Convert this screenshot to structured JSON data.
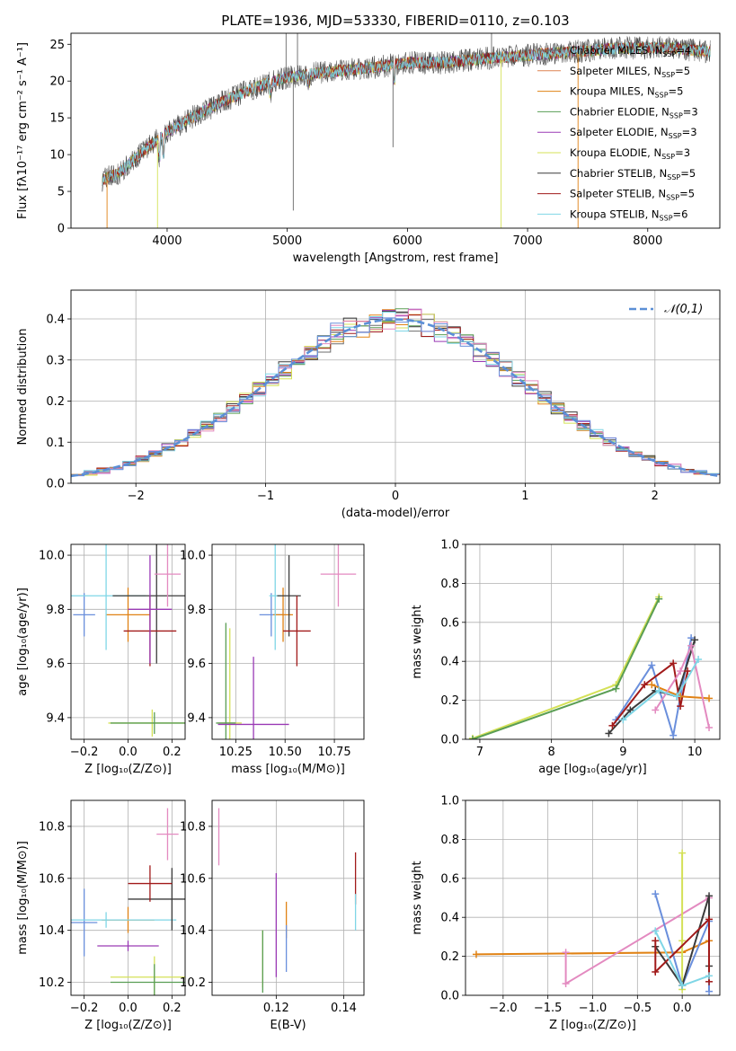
{
  "chart_data": [
    {
      "id": "spectrum",
      "type": "line",
      "title": "PLATE=1936, MJD=53330, FIBERID=0110, z=0.103",
      "xlabel": "wavelength [Angstrom, rest frame]",
      "ylabel": "Flux [fλ10⁻¹⁷ erg cm⁻² s⁻¹ A⁻¹]",
      "xlim": [
        3200,
        8600
      ],
      "ylim": [
        0,
        26.5
      ],
      "xticks": [
        4000,
        5000,
        6000,
        7000,
        8000
      ],
      "yticks": [
        0,
        5,
        10,
        15,
        20,
        25
      ],
      "legend_position": "upper-right",
      "series": [
        {
          "name": "Chabrier MILES, N_SSP=4",
          "color": "#696969"
        },
        {
          "name": "Salpeter MILES, N_SSP=5",
          "color": "#dd8452"
        },
        {
          "name": "Kroupa MILES, N_SSP=5",
          "color": "#e08214"
        },
        {
          "name": "Chabrier ELODIE, N_SSP=3",
          "color": "#5a9e54"
        },
        {
          "name": "Salpeter ELODIE, N_SSP=3",
          "color": "#9a3ab5"
        },
        {
          "name": "Kroupa ELODIE, N_SSP=3",
          "color": "#d4e157"
        },
        {
          "name": "Chabrier STELIB, N_SSP=5",
          "color": "#3b3b3b"
        },
        {
          "name": "Salpeter STELIB, N_SSP=5",
          "color": "#a11a1a"
        },
        {
          "name": "Kroupa STELIB, N_SSP=6",
          "color": "#7fd6e6"
        }
      ],
      "continuum": {
        "x": [
          3450,
          3600,
          3800,
          4000,
          4200,
          4500,
          4800,
          5000,
          5200,
          5500,
          5800,
          6000,
          6300,
          6600,
          7000,
          7400,
          7800,
          8200,
          8500
        ],
        "y": [
          6.5,
          7.5,
          10.5,
          13.0,
          15.0,
          17.5,
          19.5,
          20.5,
          21.0,
          21.5,
          22.0,
          22.5,
          22.5,
          23.0,
          23.5,
          24.0,
          24.5,
          24.5,
          24.0
        ]
      }
    },
    {
      "id": "residuals",
      "type": "histogram",
      "xlabel": "(data-model)/error",
      "ylabel": "Normed distribution",
      "xlim": [
        -2.5,
        2.5
      ],
      "ylim": [
        0,
        0.47
      ],
      "xticks": [
        -2,
        -1,
        0,
        1,
        2
      ],
      "yticks": [
        0.0,
        0.1,
        0.2,
        0.3,
        0.4
      ],
      "grid": true,
      "legend_position": "upper-right",
      "reference": {
        "name": "𝒩(0,1)",
        "color": "#5b8fd6",
        "mean": 0,
        "sigma": 1
      },
      "bin_width": 0.1,
      "series_colors": [
        "#6d6d6d",
        "#e08214",
        "#5a9e54",
        "#9a3ab5",
        "#d4e157",
        "#3b3b3b",
        "#a11a1a",
        "#7fd6e6",
        "#e38ac0",
        "#6a8fdc"
      ]
    },
    {
      "id": "age_vs_Z",
      "type": "errorbar",
      "xlabel": "Z [log₁₀(Z/Z⊙)]",
      "ylabel": "age  [log₁₀(age/yr)]",
      "xlim": [
        -0.26,
        0.26
      ],
      "ylim": [
        9.32,
        10.04
      ],
      "xticks": [
        -0.2,
        0.0,
        0.2
      ],
      "yticks": [
        9.4,
        9.6,
        9.8,
        10.0
      ],
      "points": [
        {
          "x": -0.2,
          "xerr": 0.05,
          "y": 9.78,
          "yerr": 0.08,
          "color": "#6a8fdc"
        },
        {
          "x": 0.0,
          "xerr": 0.1,
          "y": 9.78,
          "yerr": 0.1,
          "color": "#e08214"
        },
        {
          "x": -0.1,
          "xerr": 0.18,
          "y": 9.85,
          "yerr": 0.2,
          "color": "#7fd6e6"
        },
        {
          "x": 0.13,
          "xerr": 0.2,
          "y": 9.85,
          "yerr": 0.25,
          "color": "#3b3b3b"
        },
        {
          "x": 0.1,
          "xerr": 0.12,
          "y": 9.72,
          "yerr": 0.13,
          "color": "#a11a1a"
        },
        {
          "x": 0.18,
          "xerr": 0.06,
          "y": 9.93,
          "yerr": 0.12,
          "color": "#e38ac0"
        },
        {
          "x": 0.11,
          "xerr": 0.2,
          "y": 9.38,
          "yerr": 0.05,
          "color": "#d4e157"
        },
        {
          "x": 0.12,
          "xerr": 0.2,
          "y": 9.38,
          "yerr": 0.04,
          "color": "#5a9e54"
        },
        {
          "x": 0.1,
          "xerr": 0.1,
          "y": 9.8,
          "yerr": 0.2,
          "color": "#9a3ab5"
        }
      ]
    },
    {
      "id": "age_vs_mass",
      "type": "errorbar",
      "xlabel": "mass [log₁₀(M/M⊙)]",
      "ylabel": "",
      "xlim": [
        10.13,
        10.9
      ],
      "ylim": [
        9.32,
        10.04
      ],
      "xticks": [
        10.25,
        10.5,
        10.75
      ],
      "yticks": [
        9.4,
        9.6,
        9.8,
        10.0
      ],
      "points": [
        {
          "x": 10.43,
          "xerr": 0.06,
          "y": 9.78,
          "yerr": 0.08,
          "color": "#6a8fdc"
        },
        {
          "x": 10.49,
          "xerr": 0.05,
          "y": 9.78,
          "yerr": 0.1,
          "color": "#e08214"
        },
        {
          "x": 10.45,
          "xerr": 0.03,
          "y": 9.85,
          "yerr": 0.2,
          "color": "#7fd6e6"
        },
        {
          "x": 10.52,
          "xerr": 0.06,
          "y": 9.85,
          "yerr": 0.15,
          "color": "#3b3b3b"
        },
        {
          "x": 10.56,
          "xerr": 0.07,
          "y": 9.72,
          "yerr": 0.13,
          "color": "#a11a1a"
        },
        {
          "x": 10.77,
          "xerr": 0.09,
          "y": 9.93,
          "yerr": 0.12,
          "color": "#e38ac0"
        },
        {
          "x": 10.22,
          "xerr": 0.06,
          "y": 9.38,
          "yerr": 0.35,
          "color": "#d4e157"
        },
        {
          "x": 10.2,
          "xerr": 0.05,
          "y": 9.38,
          "yerr": 0.37,
          "color": "#5a9e54"
        },
        {
          "x": 10.34,
          "xerr": 0.18,
          "y": 9.375,
          "yerr": 0.25,
          "color": "#9a3ab5"
        }
      ]
    },
    {
      "id": "weight_vs_age",
      "type": "line",
      "xlabel": "age  [log₁₀(age/yr)]",
      "ylabel": "mass weight",
      "xlim": [
        6.8,
        10.35
      ],
      "ylim": [
        0,
        1.0
      ],
      "xticks": [
        7,
        8,
        9,
        10
      ],
      "yticks": [
        0.0,
        0.2,
        0.4,
        0.6,
        0.8,
        1.0
      ],
      "grid": true,
      "series": [
        {
          "color": "#d4e157",
          "x": [
            6.9,
            8.9,
            9.5
          ],
          "y": [
            0.005,
            0.28,
            0.73
          ]
        },
        {
          "color": "#5a9e54",
          "x": [
            6.9,
            8.9,
            9.5
          ],
          "y": [
            0.0,
            0.26,
            0.72
          ]
        },
        {
          "color": "#6a8fdc",
          "x": [
            8.9,
            9.4,
            9.7,
            9.95
          ],
          "y": [
            0.1,
            0.38,
            0.02,
            0.52
          ]
        },
        {
          "color": "#3b3b3b",
          "x": [
            8.8,
            9.1,
            9.45,
            9.75,
            10.0
          ],
          "y": [
            0.03,
            0.15,
            0.25,
            0.22,
            0.51
          ]
        },
        {
          "color": "#a11a1a",
          "x": [
            8.85,
            9.3,
            9.7,
            9.8,
            9.9
          ],
          "y": [
            0.07,
            0.28,
            0.39,
            0.17,
            0.35
          ]
        },
        {
          "color": "#e08214",
          "x": [
            9.4,
            9.8,
            10.2
          ],
          "y": [
            0.28,
            0.22,
            0.21
          ]
        },
        {
          "color": "#e38ac0",
          "x": [
            9.45,
            9.8,
            9.95,
            10.2
          ],
          "y": [
            0.15,
            0.35,
            0.48,
            0.06
          ]
        },
        {
          "color": "#7fd6e6",
          "x": [
            9.0,
            9.5,
            9.75,
            10.05
          ],
          "y": [
            0.1,
            0.25,
            0.22,
            0.41
          ]
        }
      ]
    },
    {
      "id": "mass_vs_Z",
      "type": "errorbar",
      "xlabel": "Z [log₁₀(Z/Z⊙)]",
      "ylabel": "mass [log₁₀(M/M⊙)]",
      "xlim": [
        -0.26,
        0.26
      ],
      "ylim": [
        10.15,
        10.9
      ],
      "xticks": [
        -0.2,
        0.0,
        0.2
      ],
      "yticks": [
        10.2,
        10.4,
        10.6,
        10.8
      ],
      "points": [
        {
          "x": -0.2,
          "xerr": 0.06,
          "y": 10.43,
          "yerr": 0.13,
          "color": "#6a8fdc"
        },
        {
          "x": 0.0,
          "xerr": 0.12,
          "y": 10.44,
          "yerr": 0.05,
          "color": "#e08214"
        },
        {
          "x": -0.1,
          "xerr": 0.32,
          "y": 10.44,
          "yerr": 0.03,
          "color": "#7fd6e6"
        },
        {
          "x": 0.2,
          "xerr": 0.2,
          "y": 10.52,
          "yerr": 0.12,
          "color": "#3b3b3b"
        },
        {
          "x": 0.1,
          "xerr": 0.1,
          "y": 10.58,
          "yerr": 0.07,
          "color": "#a11a1a"
        },
        {
          "x": 0.18,
          "xerr": 0.05,
          "y": 10.77,
          "yerr": 0.1,
          "color": "#e38ac0"
        },
        {
          "x": 0.12,
          "xerr": 0.2,
          "y": 10.22,
          "yerr": 0.08,
          "color": "#d4e157"
        },
        {
          "x": 0.12,
          "xerr": 0.2,
          "y": 10.2,
          "yerr": 0.07,
          "color": "#5a9e54"
        },
        {
          "x": 0.0,
          "xerr": 0.14,
          "y": 10.34,
          "yerr": 0.02,
          "color": "#9a3ab5"
        }
      ]
    },
    {
      "id": "mass_vs_ebv",
      "type": "errorbar",
      "xlabel": "E(B-V)",
      "ylabel": "",
      "xlim": [
        0.101,
        0.146
      ],
      "ylim": [
        10.15,
        10.9
      ],
      "xticks": [
        0.12,
        0.14
      ],
      "yticks": [
        10.2,
        10.4,
        10.6,
        10.8
      ],
      "points": [
        {
          "x": 0.103,
          "xerr": 0,
          "y": 10.76,
          "yerr": 0.11,
          "color": "#e38ac0"
        },
        {
          "x": 0.116,
          "xerr": 0,
          "y": 10.29,
          "yerr": 0.11,
          "color": "#d4e157"
        },
        {
          "x": 0.116,
          "xerr": 0,
          "y": 10.28,
          "yerr": 0.12,
          "color": "#5a9e54"
        },
        {
          "x": 0.12,
          "xerr": 0,
          "y": 10.42,
          "yerr": 0.2,
          "color": "#9a3ab5"
        },
        {
          "x": 0.123,
          "xerr": 0,
          "y": 10.44,
          "yerr": 0.07,
          "color": "#e08214"
        },
        {
          "x": 0.123,
          "xerr": 0,
          "y": 10.33,
          "yerr": 0.09,
          "color": "#6a8fdc"
        },
        {
          "x": 0.1435,
          "xerr": 0,
          "y": 10.6,
          "yerr": 0.1,
          "color": "#a11a1a"
        },
        {
          "x": 0.1435,
          "xerr": 0,
          "y": 10.47,
          "yerr": 0.07,
          "color": "#7fd6e6"
        }
      ]
    },
    {
      "id": "weight_vs_Z",
      "type": "line",
      "xlabel": "Z [log₁₀(Z/Z⊙)]",
      "ylabel": "mass weight",
      "xlim": [
        -2.42,
        0.42
      ],
      "ylim": [
        0,
        1.0
      ],
      "xticks": [
        -2.0,
        -1.5,
        -1.0,
        -0.5,
        0.0
      ],
      "yticks": [
        0.0,
        0.2,
        0.4,
        0.6,
        0.8,
        1.0
      ],
      "grid": true,
      "series": [
        {
          "color": "#e08214",
          "x": [
            -2.3,
            0.0,
            0.3
          ],
          "y": [
            0.21,
            0.22,
            0.28
          ]
        },
        {
          "color": "#e38ac0",
          "x": [
            -1.3,
            -1.3,
            0.3
          ],
          "y": [
            0.22,
            0.06,
            0.5
          ]
        },
        {
          "color": "#d4e157",
          "x": [
            0.0,
            0.0,
            0.0
          ],
          "y": [
            0.03,
            0.28,
            0.73
          ]
        },
        {
          "color": "#6a8fdc",
          "x": [
            -0.3,
            0.0,
            0.3,
            0.3
          ],
          "y": [
            0.52,
            0.05,
            0.38,
            0.02
          ]
        },
        {
          "color": "#3b3b3b",
          "x": [
            -0.3,
            0.0,
            0.3,
            0.3
          ],
          "y": [
            0.25,
            0.05,
            0.51,
            0.15
          ]
        },
        {
          "color": "#a11a1a",
          "x": [
            -0.3,
            -0.3,
            0.3,
            0.3
          ],
          "y": [
            0.28,
            0.12,
            0.39,
            0.07
          ]
        },
        {
          "color": "#7fd6e6",
          "x": [
            -0.3,
            0.0,
            0.3
          ],
          "y": [
            0.33,
            0.05,
            0.1
          ]
        }
      ]
    }
  ]
}
